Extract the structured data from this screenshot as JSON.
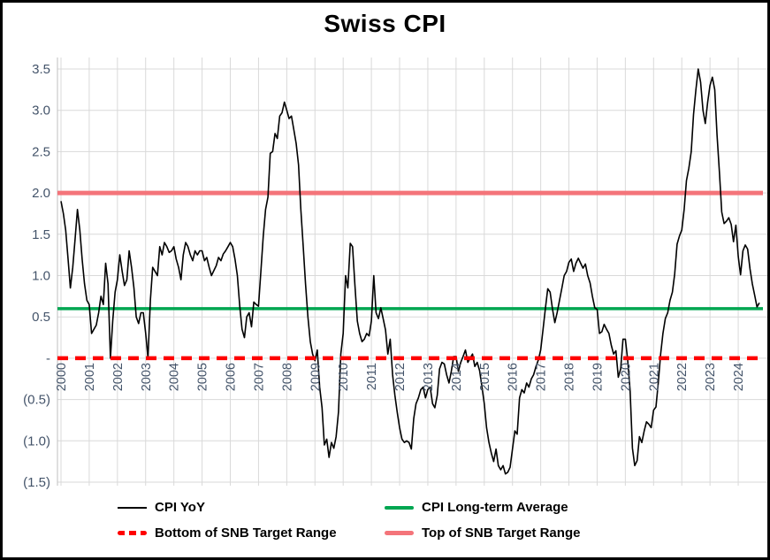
{
  "chart_data": {
    "type": "line",
    "title": "Swiss CPI",
    "grid": true,
    "legend_position": "bottom",
    "y_axis": {
      "range": [
        -1.5,
        3.5
      ],
      "number_format": "negatives in parentheses, zero shown as dash",
      "ticks": [
        {
          "label": "3.5",
          "value": 3.5
        },
        {
          "label": "3.0",
          "value": 3.0
        },
        {
          "label": "2.5",
          "value": 2.5
        },
        {
          "label": "2.0",
          "value": 2.0
        },
        {
          "label": "1.5",
          "value": 1.5
        },
        {
          "label": "1.0",
          "value": 1.0
        },
        {
          "label": "0.5",
          "value": 0.5
        },
        {
          "label": "-",
          "value": 0.0
        },
        {
          "label": "(0.5)",
          "value": -0.5
        },
        {
          "label": "(1.0)",
          "value": -1.0
        },
        {
          "label": "(1.5)",
          "value": -1.5
        }
      ]
    },
    "x_axis": {
      "tick_years": [
        2000,
        2001,
        2002,
        2003,
        2004,
        2005,
        2006,
        2007,
        2008,
        2009,
        2010,
        2011,
        2012,
        2013,
        2014,
        2015,
        2016,
        2017,
        2018,
        2019,
        2020,
        2021,
        2022,
        2023,
        2024
      ],
      "points_start": "2000-01",
      "frequency": "monthly"
    },
    "colors": {
      "cpi_line": "#000000",
      "average_line": "#00A651",
      "snb_bottom_line": "#FF0000",
      "snb_top_line": "#F4747A",
      "gridline": "#D9D9D9",
      "axis_label": "#44546A"
    },
    "series": [
      {
        "id": "cpi-yoy",
        "name": "CPI YoY",
        "type": "line",
        "color": "#000000",
        "style": "solid",
        "width": 1.6,
        "monthly_values": [
          1.9,
          1.75,
          1.55,
          1.2,
          0.85,
          1.1,
          1.45,
          1.8,
          1.55,
          1.2,
          0.9,
          0.7,
          0.65,
          0.3,
          0.35,
          0.4,
          0.55,
          0.75,
          0.65,
          1.15,
          0.9,
          0.0,
          0.45,
          0.8,
          0.95,
          1.25,
          1.05,
          0.88,
          0.95,
          1.3,
          1.1,
          0.85,
          0.5,
          0.42,
          0.55,
          0.55,
          0.3,
          0.0,
          0.7,
          1.1,
          1.05,
          1.0,
          1.35,
          1.25,
          1.4,
          1.35,
          1.28,
          1.3,
          1.35,
          1.2,
          1.1,
          0.95,
          1.25,
          1.4,
          1.35,
          1.25,
          1.18,
          1.3,
          1.25,
          1.3,
          1.3,
          1.18,
          1.22,
          1.1,
          1.0,
          1.06,
          1.12,
          1.22,
          1.18,
          1.26,
          1.3,
          1.35,
          1.4,
          1.35,
          1.2,
          1.0,
          0.63,
          0.35,
          0.25,
          0.5,
          0.55,
          0.38,
          0.68,
          0.65,
          0.63,
          1.05,
          1.48,
          1.8,
          1.95,
          2.48,
          2.5,
          2.72,
          2.66,
          2.93,
          2.97,
          3.1,
          3.0,
          2.9,
          2.93,
          2.77,
          2.6,
          2.34,
          1.8,
          1.35,
          0.9,
          0.5,
          0.2,
          0.05,
          -0.03,
          0.1,
          -0.35,
          -0.6,
          -1.05,
          -0.98,
          -1.2,
          -1.02,
          -1.09,
          -0.95,
          -0.65,
          0.05,
          0.3,
          1.0,
          0.85,
          1.39,
          1.35,
          0.88,
          0.45,
          0.3,
          0.2,
          0.23,
          0.3,
          0.27,
          0.45,
          1.0,
          0.55,
          0.48,
          0.61,
          0.48,
          0.34,
          0.05,
          0.23,
          -0.2,
          -0.45,
          -0.66,
          -0.84,
          -0.98,
          -1.02,
          -1.0,
          -1.02,
          -1.1,
          -0.73,
          -0.55,
          -0.48,
          -0.38,
          -0.35,
          -0.48,
          -0.38,
          -0.35,
          -0.55,
          -0.6,
          -0.45,
          -0.13,
          -0.05,
          -0.07,
          -0.2,
          -0.3,
          -0.16,
          0.02,
          0.02,
          -0.16,
          -0.05,
          0.02,
          0.1,
          -0.05,
          0.0,
          0.05,
          -0.1,
          -0.05,
          -0.15,
          -0.34,
          -0.55,
          -0.84,
          -1.02,
          -1.15,
          -1.25,
          -1.1,
          -1.3,
          -1.35,
          -1.3,
          -1.4,
          -1.38,
          -1.32,
          -1.1,
          -0.88,
          -0.92,
          -0.48,
          -0.38,
          -0.42,
          -0.3,
          -0.35,
          -0.25,
          -0.2,
          -0.1,
          -0.02,
          0.1,
          0.35,
          0.6,
          0.84,
          0.8,
          0.6,
          0.43,
          0.55,
          0.7,
          0.85,
          1.0,
          1.05,
          1.16,
          1.2,
          1.05,
          1.15,
          1.21,
          1.15,
          1.09,
          1.14,
          1.0,
          0.91,
          0.75,
          0.61,
          0.59,
          0.3,
          0.32,
          0.41,
          0.35,
          0.3,
          0.16,
          0.05,
          0.09,
          -0.23,
          -0.13,
          0.23,
          0.23,
          -0.02,
          -0.38,
          -1.09,
          -1.3,
          -1.24,
          -0.95,
          -1.02,
          -0.88,
          -0.77,
          -0.8,
          -0.84,
          -0.63,
          -0.59,
          -0.3,
          0.05,
          0.3,
          0.48,
          0.55,
          0.7,
          0.8,
          1.02,
          1.38,
          1.48,
          1.55,
          1.8,
          2.15,
          2.3,
          2.5,
          2.95,
          3.25,
          3.5,
          3.34,
          3.0,
          2.84,
          3.1,
          3.3,
          3.4,
          3.25,
          2.7,
          2.25,
          1.77,
          1.63,
          1.66,
          1.7,
          1.62,
          1.41,
          1.61,
          1.23,
          1.01,
          1.3,
          1.37,
          1.32,
          1.08,
          0.9,
          0.76,
          0.62,
          0.67
        ]
      },
      {
        "id": "cpi-long-term-average",
        "name": "CPI Long-term Average",
        "type": "hline",
        "color": "#00A651",
        "style": "solid",
        "width": 3.5,
        "value": 0.6
      },
      {
        "id": "snb-target-bottom",
        "name": "Bottom of SNB Target Range",
        "type": "hline",
        "color": "#FF0000",
        "style": "dashed",
        "width": 4.5,
        "value": 0.0
      },
      {
        "id": "snb-target-top",
        "name": "Top of SNB Target Range",
        "type": "hline",
        "color": "#F4747A",
        "style": "solid",
        "width": 5,
        "value": 2.0
      }
    ]
  }
}
